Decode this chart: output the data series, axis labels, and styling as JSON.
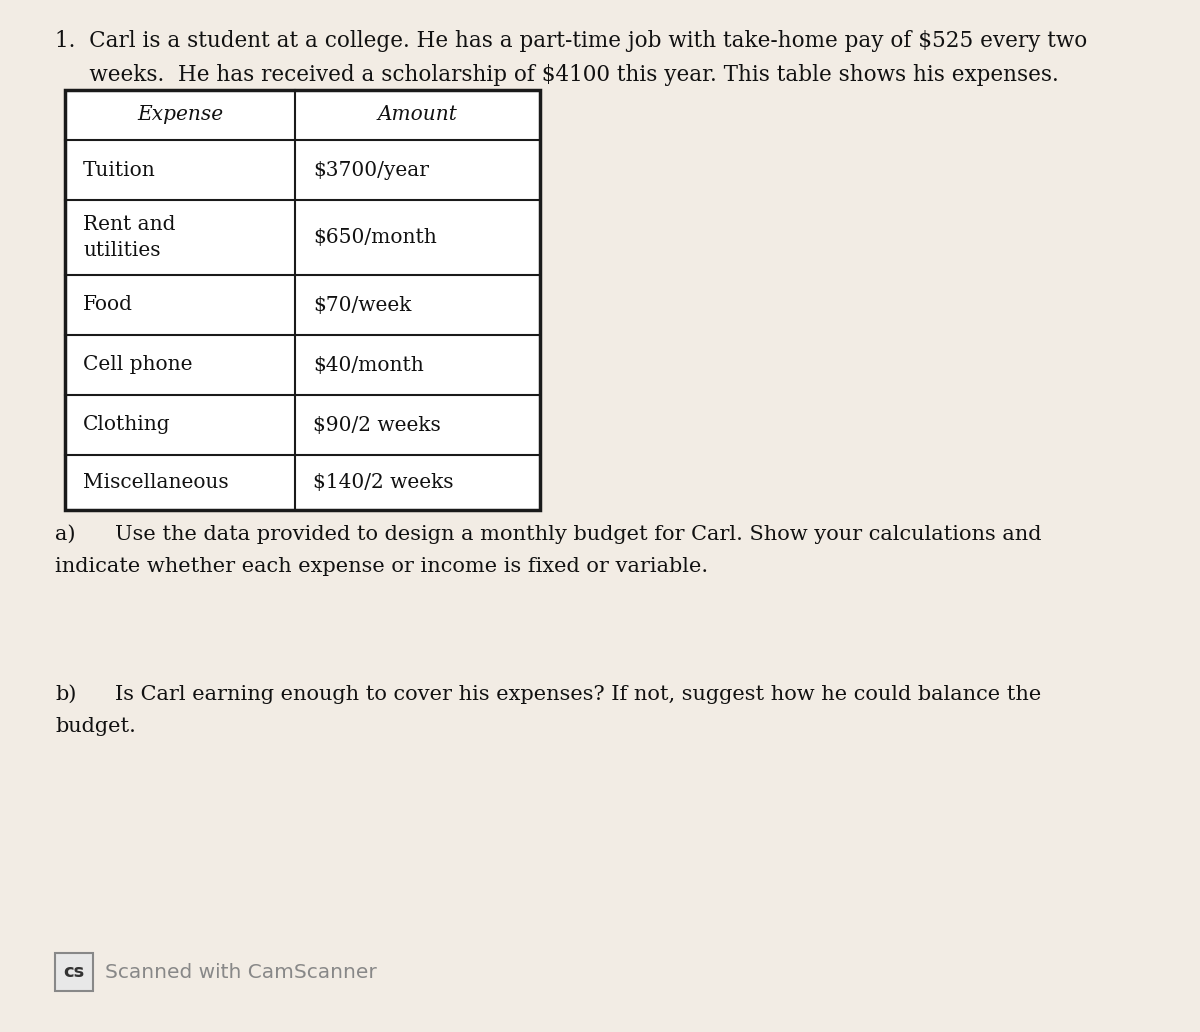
{
  "title_line1": "1.  Carl is a student at a college. He has a part-time job with take-home pay of $525 every two",
  "title_line2": "     weeks.  He has received a scholarship of $4100 this year. This table shows his expenses.",
  "table_headers": [
    "Expense",
    "Amount"
  ],
  "table_rows": [
    [
      "Tuition",
      "$3700/year"
    ],
    [
      "Rent and\nutilities",
      "$650/month"
    ],
    [
      "Food",
      "$70/week"
    ],
    [
      "Cell phone",
      "$40/month"
    ],
    [
      "Clothing",
      "$90/2 weeks"
    ],
    [
      "Miscellaneous",
      "$140/2 weeks"
    ]
  ],
  "part_a_label": "a)",
  "part_a_indent": "        ",
  "part_a_text1": "Use the data provided to design a monthly budget for Carl. Show your calculations and",
  "part_a_text2": "indicate whether each expense or income is fixed or variable.",
  "part_b_label": "b)",
  "part_b_text1": "Is Carl earning enough to cover his expenses? If not, suggest how he could balance the",
  "part_b_text2": "budget.",
  "footer_text": "Scanned with CamScanner",
  "bg_color": "#f2ece4",
  "table_bg": "#ffffff",
  "text_color": "#111111",
  "border_color": "#1a1a1a",
  "font_size_title": 15.5,
  "font_size_table": 14.5,
  "font_size_body": 15.0,
  "font_size_footer": 14.5
}
